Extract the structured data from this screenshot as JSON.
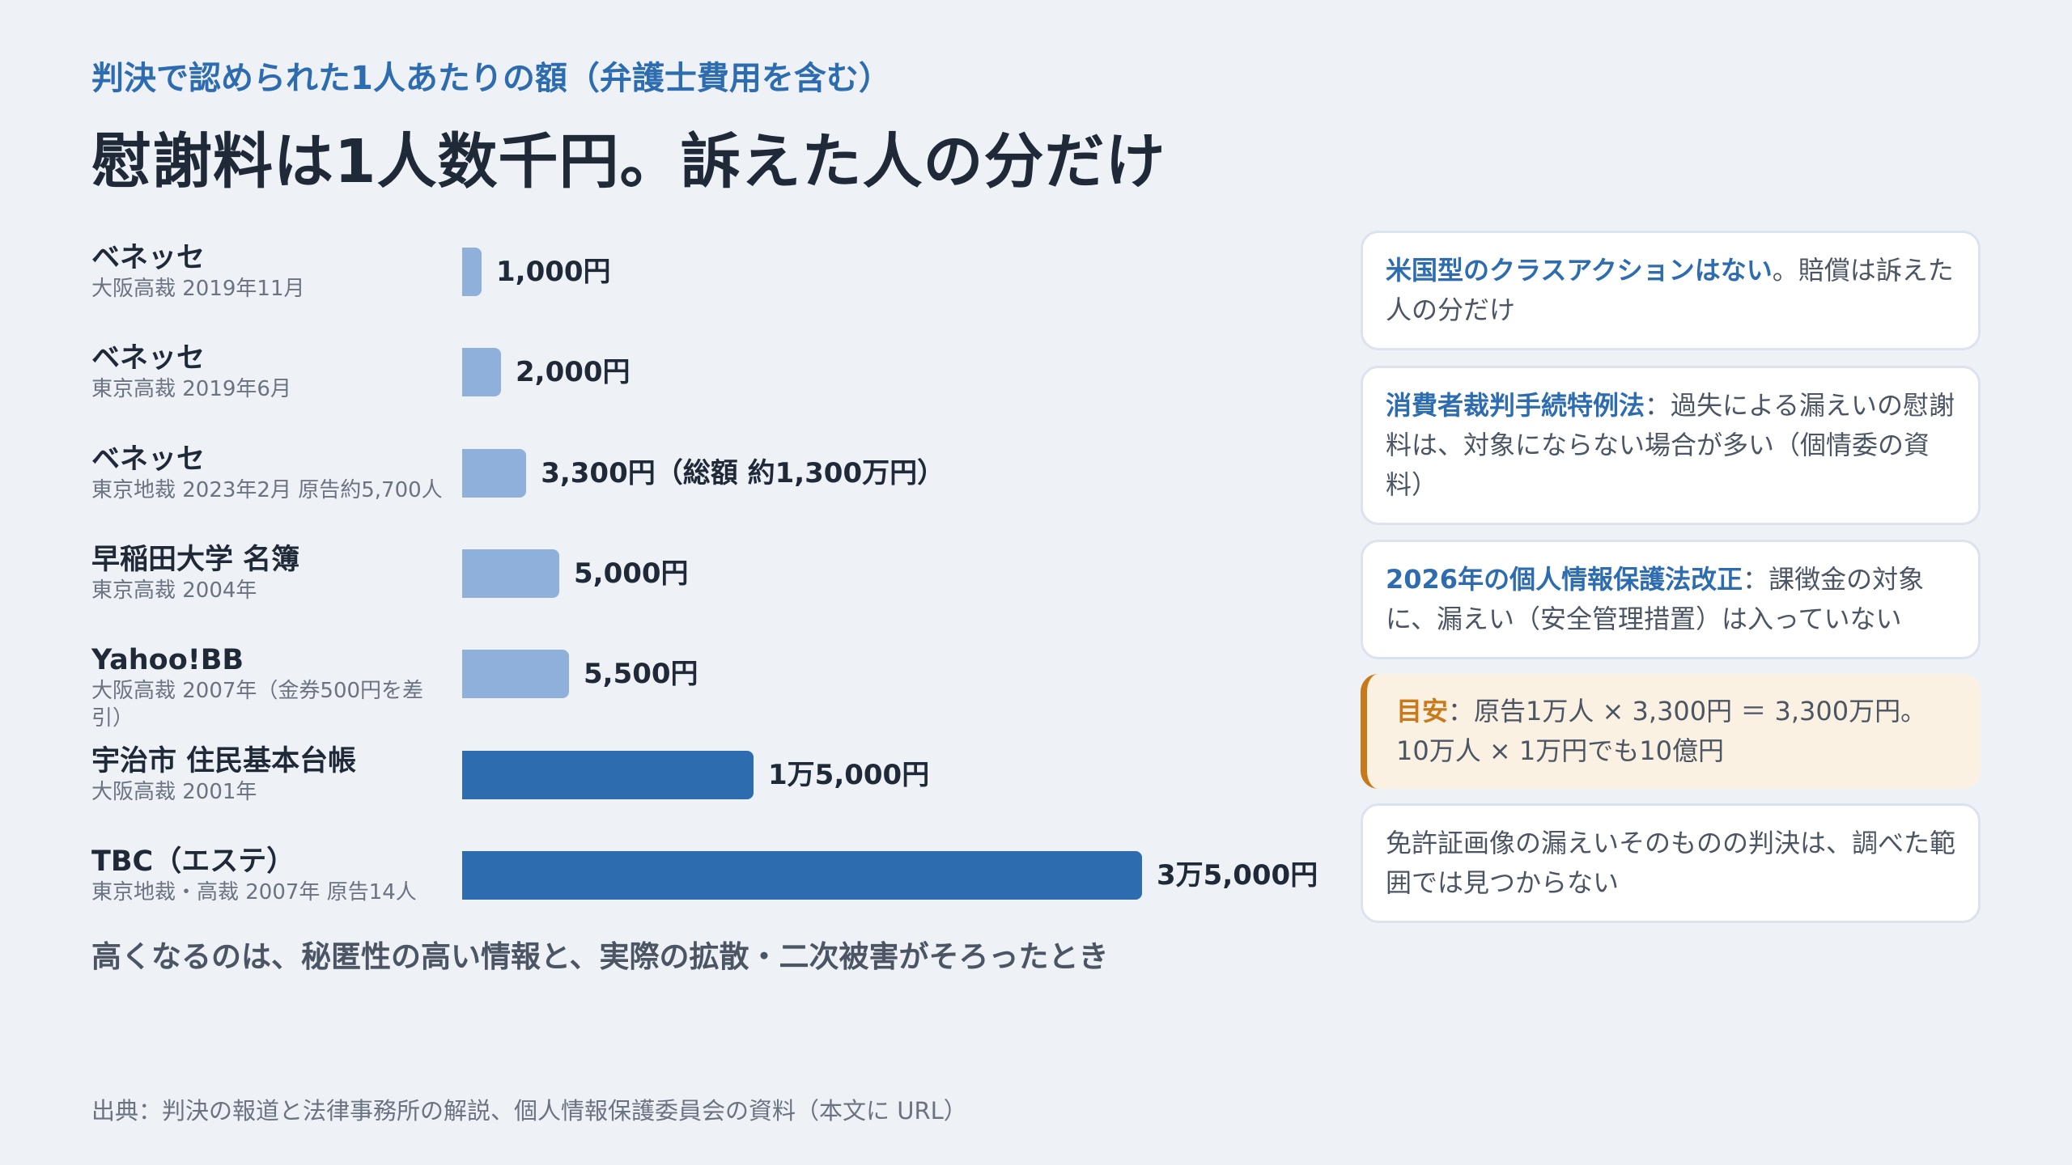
{
  "header": {
    "kicker": "判決で認められた1人あたりの額（弁護士費用を含む）",
    "title": "慰謝料は1人数千円。訴えた人の分だけ"
  },
  "chart_data": {
    "type": "bar",
    "orientation": "horizontal",
    "unit": "円",
    "xlim": [
      0,
      35000
    ],
    "rows": [
      {
        "name": "ベネッセ",
        "sub": "大阪高裁 2019年11月",
        "value": 1000,
        "label": "1,000円",
        "color": "#8fb0da"
      },
      {
        "name": "ベネッセ",
        "sub": "東京高裁 2019年6月",
        "value": 2000,
        "label": "2,000円",
        "color": "#8fb0da"
      },
      {
        "name": "ベネッセ",
        "sub": "東京地裁 2023年2月 原告約5,700人",
        "value": 3300,
        "label": "3,300円（総額 約1,300万円）",
        "color": "#8fb0da"
      },
      {
        "name": "早稲田大学 名簿",
        "sub": "東京高裁 2004年",
        "value": 5000,
        "label": "5,000円",
        "color": "#8fb0da"
      },
      {
        "name": "Yahoo!BB",
        "sub": "大阪高裁 2007年（金券500円を差引）",
        "value": 5500,
        "label": "5,500円",
        "color": "#8fb0da"
      },
      {
        "name": "宇治市 住民基本台帳",
        "sub": "大阪高裁 2001年",
        "value": 15000,
        "label": "1万5,000円",
        "color": "#2e6cb0"
      },
      {
        "name": "TBC（エステ）",
        "sub": "東京地裁・高裁 2007年 原告14人",
        "value": 35000,
        "label": "3万5,000円",
        "color": "#2e6cb0"
      }
    ]
  },
  "takeaway": "高くなるのは、秘匿性の高い情報と、実際の拡散・二次被害がそろったとき",
  "cards": [
    {
      "highlight": "米国型のクラスアクションはない",
      "text": "。賠償は訴えた人の分だけ"
    },
    {
      "highlight": "消費者裁判手続特例法",
      "text": "：過失による漏えいの慰謝料は、対象にならない場合が多い（個情委の資料）"
    },
    {
      "highlight": "2026年の個人情報保護法改正",
      "text": "：課徴金の対象に、漏えい（安全管理措置）は入っていない"
    },
    {
      "highlight": "目安",
      "text": "：原告1万人 × 3,300円 ＝ 3,300万円。10万人 × 1万円でも10億円"
    },
    {
      "highlight": "",
      "text": "免許証画像の漏えいそのものの判決は、調べた範囲では見つからない"
    }
  ],
  "source": "出典：判決の報道と法律事務所の解説、個人情報保護委員会の資料（本文に URL）"
}
